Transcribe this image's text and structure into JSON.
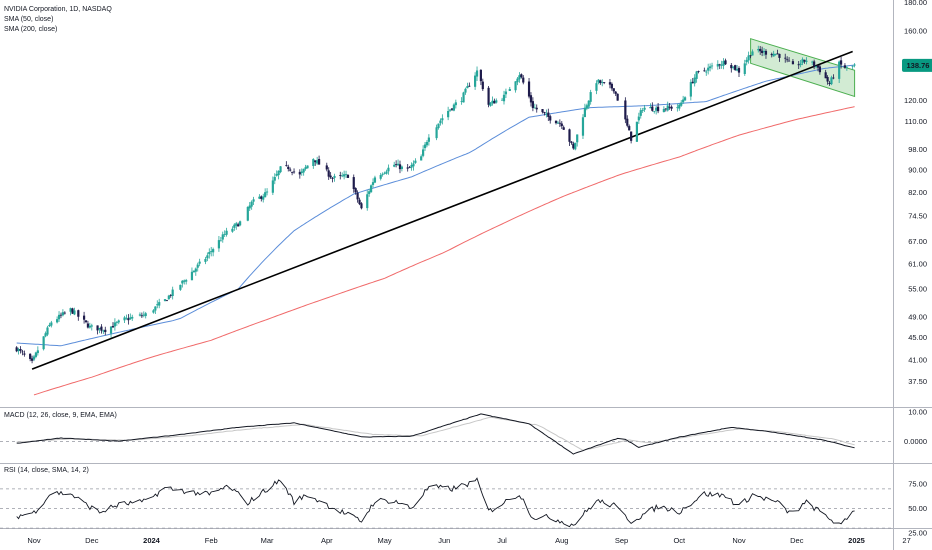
{
  "chart_data": {
    "type": "candlestick",
    "symbol_title": "NVIDIA Corporation, 1D, NASDAQ",
    "price_scale": "log",
    "ylim": [
      35,
      180
    ],
    "last_price": "138.76",
    "last_price_color": "#089981",
    "up_color": "#26a69a",
    "down_color": "#1e1b4b",
    "y_ticks": [
      "180.00",
      "160.00",
      "120.00",
      "110.00",
      "98.00",
      "90.00",
      "82.00",
      "74.50",
      "67.00",
      "61.00",
      "55.00",
      "49.00",
      "45.00",
      "41.00",
      "37.50"
    ],
    "x_ticks": [
      "Nov",
      "Dec",
      "2024",
      "Feb",
      "Mar",
      "Apr",
      "May",
      "Jun",
      "Jul",
      "Aug",
      "Sep",
      "Oct",
      "Nov",
      "Dec",
      "2025",
      "27"
    ],
    "indicators": [
      {
        "name": "SMA (50, close)",
        "color": "#5b8dd9"
      },
      {
        "name": "SMA (200, close)",
        "color": "#f06a6a"
      }
    ],
    "trendline": {
      "color": "#000000",
      "from": [
        "2023-10-31",
        39.5
      ],
      "to": [
        "2024-12-30",
        147.0
      ]
    },
    "channel": {
      "color": "#4caf50",
      "upper": [
        [
          "2024-11-07",
          155
        ],
        [
          "2024-12-31",
          136
        ]
      ],
      "lower": [
        [
          "2024-11-07",
          140
        ],
        [
          "2024-12-31",
          122
        ]
      ]
    },
    "anchors": [
      [
        "2023-10-23",
        43.0
      ],
      [
        "2023-10-31",
        40.5
      ],
      [
        "2023-11-10",
        48.0
      ],
      [
        "2023-11-20",
        50.5
      ],
      [
        "2023-11-30",
        47.0
      ],
      [
        "2023-12-08",
        46.5
      ],
      [
        "2023-12-18",
        48.5
      ],
      [
        "2023-12-29",
        49.5
      ],
      [
        "2024-01-08",
        52.5
      ],
      [
        "2024-01-18",
        57.0
      ],
      [
        "2024-01-29",
        62.5
      ],
      [
        "2024-02-08",
        69.0
      ],
      [
        "2024-02-16",
        72.5
      ],
      [
        "2024-02-22",
        78.5
      ],
      [
        "2024-03-01",
        82.0
      ],
      [
        "2024-03-08",
        90.5
      ],
      [
        "2024-03-12",
        91.0
      ],
      [
        "2024-03-18",
        88.0
      ],
      [
        "2024-03-25",
        94.5
      ],
      [
        "2024-04-04",
        87.0
      ],
      [
        "2024-04-12",
        88.0
      ],
      [
        "2024-04-19",
        76.5
      ],
      [
        "2024-04-26",
        87.5
      ],
      [
        "2024-05-06",
        92.0
      ],
      [
        "2024-05-13",
        90.0
      ],
      [
        "2024-05-20",
        95.0
      ],
      [
        "2024-05-24",
        104.0
      ],
      [
        "2024-06-03",
        115.0
      ],
      [
        "2024-06-10",
        121.0
      ],
      [
        "2024-06-18",
        135.5
      ],
      [
        "2024-06-24",
        118.0
      ],
      [
        "2024-07-02",
        122.0
      ],
      [
        "2024-07-10",
        134.0
      ],
      [
        "2024-07-17",
        117.0
      ],
      [
        "2024-07-25",
        112.0
      ],
      [
        "2024-08-01",
        109.0
      ],
      [
        "2024-08-07",
        98.0
      ],
      [
        "2024-08-13",
        116.0
      ],
      [
        "2024-08-19",
        130.0
      ],
      [
        "2024-08-28",
        126.0
      ],
      [
        "2024-09-06",
        102.5
      ],
      [
        "2024-09-12",
        116.5
      ],
      [
        "2024-09-20",
        116.0
      ],
      [
        "2024-10-01",
        117.0
      ],
      [
        "2024-10-10",
        134.0
      ],
      [
        "2024-10-18",
        138.0
      ],
      [
        "2024-10-25",
        141.0
      ],
      [
        "2024-11-01",
        135.5
      ],
      [
        "2024-11-08",
        147.5
      ],
      [
        "2024-11-14",
        146.5
      ],
      [
        "2024-11-21",
        145.5
      ],
      [
        "2024-11-29",
        138.0
      ],
      [
        "2024-12-06",
        142.0
      ],
      [
        "2024-12-12",
        137.5
      ],
      [
        "2024-12-18",
        128.5
      ],
      [
        "2024-12-23",
        139.5
      ],
      [
        "2024-12-27",
        137.0
      ],
      [
        "2024-12-31",
        138.76
      ]
    ],
    "sma50_anchors": [
      [
        "2023-10-23",
        44.0
      ],
      [
        "2023-11-15",
        43.5
      ],
      [
        "2023-12-15",
        46.0
      ],
      [
        "2024-01-15",
        48.5
      ],
      [
        "2024-02-15",
        55.0
      ],
      [
        "2024-03-15",
        70.0
      ],
      [
        "2024-04-15",
        81.5
      ],
      [
        "2024-05-15",
        87.5
      ],
      [
        "2024-06-15",
        97.0
      ],
      [
        "2024-07-15",
        112.0
      ],
      [
        "2024-08-15",
        116.5
      ],
      [
        "2024-09-15",
        117.5
      ],
      [
        "2024-10-15",
        119.5
      ],
      [
        "2024-11-15",
        130.0
      ],
      [
        "2024-12-15",
        137.0
      ],
      [
        "2024-12-31",
        139.0
      ]
    ],
    "sma200_anchors": [
      [
        "2023-11-01",
        35.5
      ],
      [
        "2023-12-01",
        38.2
      ],
      [
        "2024-01-01",
        41.5
      ],
      [
        "2024-02-01",
        44.5
      ],
      [
        "2024-03-01",
        48.5
      ],
      [
        "2024-04-01",
        53.0
      ],
      [
        "2024-05-01",
        57.5
      ],
      [
        "2024-06-01",
        64.0
      ],
      [
        "2024-07-01",
        72.0
      ],
      [
        "2024-08-01",
        80.5
      ],
      [
        "2024-09-01",
        88.5
      ],
      [
        "2024-10-01",
        95.0
      ],
      [
        "2024-11-01",
        104.0
      ],
      [
        "2024-12-01",
        111.0
      ],
      [
        "2024-12-31",
        117.0
      ]
    ],
    "macd": {
      "title": "MACD (12, 26, close, 9, EMA, EMA)",
      "ylim": [
        -5.0,
        10.0
      ],
      "y_ticks": [
        "10.00",
        "0.0000"
      ],
      "macd_color": "#131722",
      "signal_color": "#c7c7c7",
      "macd_anchors": [
        [
          "2023-10-23",
          -0.6
        ],
        [
          "2023-11-15",
          1.2
        ],
        [
          "2023-12-15",
          0.1
        ],
        [
          "2024-01-15",
          2.3
        ],
        [
          "2024-02-15",
          4.8
        ],
        [
          "2024-03-15",
          6.3
        ],
        [
          "2024-04-20",
          1.5
        ],
        [
          "2024-05-15",
          1.8
        ],
        [
          "2024-06-20",
          9.3
        ],
        [
          "2024-07-15",
          6.0
        ],
        [
          "2024-08-07",
          -4.2
        ],
        [
          "2024-09-01",
          1.5
        ],
        [
          "2024-09-10",
          -2.0
        ],
        [
          "2024-10-01",
          1.5
        ],
        [
          "2024-10-28",
          4.8
        ],
        [
          "2024-11-15",
          3.5
        ],
        [
          "2024-12-15",
          0.5
        ],
        [
          "2024-12-31",
          -2.2
        ]
      ],
      "signal_anchors": [
        [
          "2023-10-23",
          -0.2
        ],
        [
          "2023-11-20",
          0.9
        ],
        [
          "2023-12-20",
          0.4
        ],
        [
          "2024-01-20",
          1.9
        ],
        [
          "2024-02-20",
          4.2
        ],
        [
          "2024-03-20",
          5.8
        ],
        [
          "2024-04-25",
          2.4
        ],
        [
          "2024-05-20",
          1.9
        ],
        [
          "2024-06-25",
          8.2
        ],
        [
          "2024-07-20",
          5.5
        ],
        [
          "2024-08-12",
          -3.0
        ],
        [
          "2024-09-05",
          0.6
        ],
        [
          "2024-09-15",
          -0.5
        ],
        [
          "2024-10-05",
          1.6
        ],
        [
          "2024-11-01",
          4.3
        ],
        [
          "2024-11-20",
          3.4
        ],
        [
          "2024-12-20",
          0.9
        ],
        [
          "2024-12-31",
          -1.2
        ]
      ]
    },
    "rsi": {
      "title": "RSI (14, close, SMA, 14, 2)",
      "ylim": [
        20,
        85
      ],
      "y_ticks": [
        "75.00",
        "50.00",
        "25.00"
      ],
      "levels": [
        70,
        50,
        30
      ],
      "line_color": "#131722",
      "anchors": [
        [
          "2023-10-23",
          42
        ],
        [
          "2023-11-01",
          46
        ],
        [
          "2023-11-10",
          66
        ],
        [
          "2023-11-20",
          65
        ],
        [
          "2023-11-28",
          54
        ],
        [
          "2023-12-05",
          46
        ],
        [
          "2023-12-15",
          54
        ],
        [
          "2023-12-29",
          57
        ],
        [
          "2024-01-08",
          71
        ],
        [
          "2024-01-18",
          68
        ],
        [
          "2024-01-31",
          64
        ],
        [
          "2024-02-10",
          73
        ],
        [
          "2024-02-20",
          56
        ],
        [
          "2024-03-01",
          70
        ],
        [
          "2024-03-08",
          79
        ],
        [
          "2024-03-15",
          57
        ],
        [
          "2024-03-22",
          64
        ],
        [
          "2024-04-05",
          50
        ],
        [
          "2024-04-19",
          37
        ],
        [
          "2024-04-26",
          58
        ],
        [
          "2024-05-06",
          58
        ],
        [
          "2024-05-15",
          50
        ],
        [
          "2024-05-24",
          72
        ],
        [
          "2024-06-05",
          70
        ],
        [
          "2024-06-18",
          78
        ],
        [
          "2024-06-24",
          47
        ],
        [
          "2024-07-10",
          65
        ],
        [
          "2024-07-17",
          41
        ],
        [
          "2024-07-26",
          41
        ],
        [
          "2024-08-07",
          33
        ],
        [
          "2024-08-19",
          58
        ],
        [
          "2024-08-28",
          53
        ],
        [
          "2024-09-06",
          37
        ],
        [
          "2024-09-20",
          52
        ],
        [
          "2024-10-01",
          47
        ],
        [
          "2024-10-14",
          65
        ],
        [
          "2024-10-25",
          63
        ],
        [
          "2024-11-01",
          52
        ],
        [
          "2024-11-08",
          64
        ],
        [
          "2024-11-21",
          56
        ],
        [
          "2024-11-28",
          44
        ],
        [
          "2024-12-06",
          56
        ],
        [
          "2024-12-18",
          40
        ],
        [
          "2024-12-24",
          32
        ],
        [
          "2024-12-31",
          49
        ]
      ]
    }
  }
}
